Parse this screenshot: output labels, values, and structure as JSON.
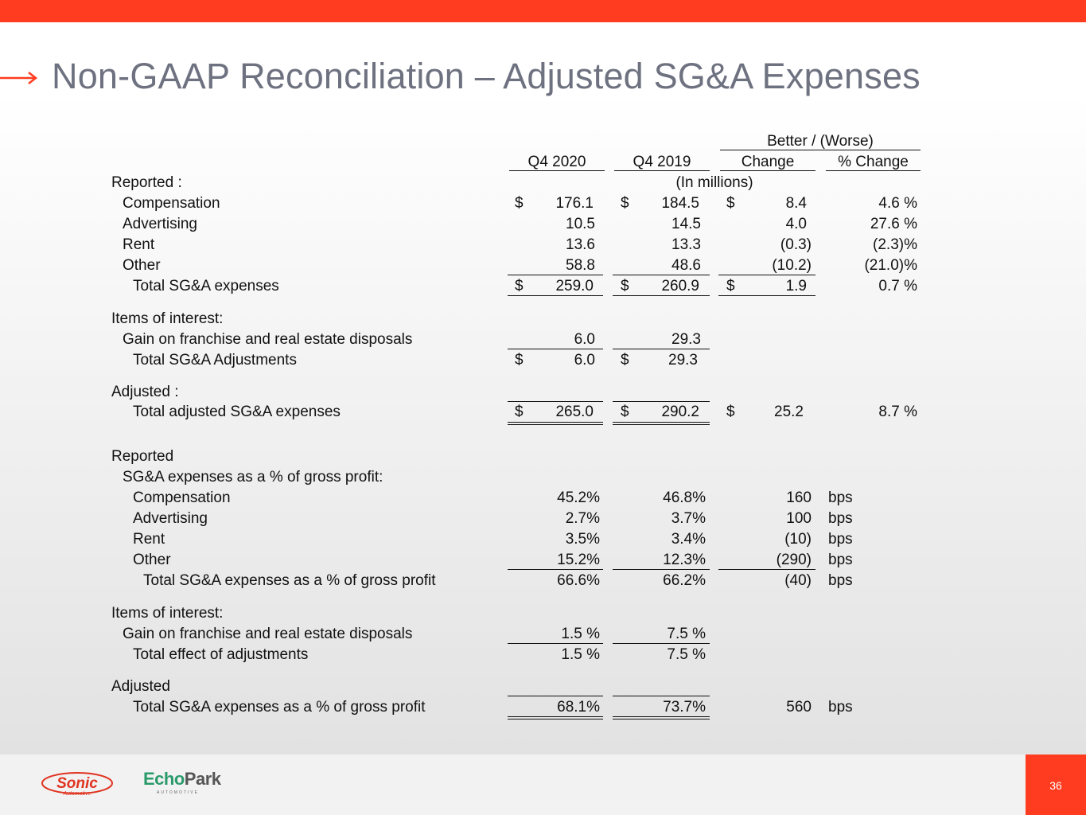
{
  "title": "Non-GAAP Reconciliation – Adjusted SG&A Expenses",
  "header": {
    "better_worse": "Better / (Worse)",
    "col_q4_2020": "Q4 2020",
    "col_q4_2019": "Q4 2019",
    "col_change": "Change",
    "col_pct_change": "% Change",
    "in_millions": "(In millions)"
  },
  "currency_symbol": "$",
  "bps_unit": "bps",
  "section1": {
    "reported_heading": "Reported :",
    "rows": [
      {
        "label": "Compensation",
        "q4_2020": "176.1",
        "q4_2019": "184.5",
        "change": "8.4",
        "pct": "4.6 %"
      },
      {
        "label": "Advertising",
        "q4_2020": "10.5",
        "q4_2019": "14.5",
        "change": "4.0",
        "pct": "27.6 %"
      },
      {
        "label": "Rent",
        "q4_2020": "13.6",
        "q4_2019": "13.3",
        "change": "(0.3)",
        "pct": "(2.3)%"
      },
      {
        "label": "Other",
        "q4_2020": "58.8",
        "q4_2019": "48.6",
        "change": "(10.2)",
        "pct": "(21.0)%"
      }
    ],
    "total": {
      "label": "Total SG&A expenses",
      "q4_2020": "259.0",
      "q4_2019": "260.9",
      "change": "1.9",
      "pct": "0.7 %"
    },
    "items_heading": "Items of interest:",
    "gain": {
      "label": "Gain on franchise and real estate disposals",
      "q4_2020": "6.0",
      "q4_2019": "29.3"
    },
    "adj_total": {
      "label": "Total SG&A Adjustments",
      "q4_2020": "6.0",
      "q4_2019": "29.3"
    },
    "adjusted_heading": "Adjusted :",
    "adjusted_total": {
      "label": "Total adjusted SG&A expenses",
      "q4_2020": "265.0",
      "q4_2019": "290.2",
      "change": "25.2",
      "pct": "8.7 %"
    }
  },
  "section2": {
    "reported_heading": "Reported",
    "subheading": "SG&A expenses as a % of gross profit:",
    "rows": [
      {
        "label": "Compensation",
        "q4_2020": "45.2%",
        "q4_2019": "46.8%",
        "change": "160"
      },
      {
        "label": "Advertising",
        "q4_2020": "2.7%",
        "q4_2019": "3.7%",
        "change": "100"
      },
      {
        "label": "Rent",
        "q4_2020": "3.5%",
        "q4_2019": "3.4%",
        "change": "(10)"
      },
      {
        "label": "Other",
        "q4_2020": "15.2%",
        "q4_2019": "12.3%",
        "change": "(290)"
      }
    ],
    "total": {
      "label": "Total SG&A expenses as a % of gross profit",
      "q4_2020": "66.6%",
      "q4_2019": "66.2%",
      "change": "(40)"
    },
    "items_heading": "Items of interest:",
    "gain": {
      "label": "Gain on franchise and real estate disposals",
      "q4_2020": "1.5 %",
      "q4_2019": "7.5 %"
    },
    "effect": {
      "label": "Total effect of adjustments",
      "q4_2020": "1.5 %",
      "q4_2019": "7.5 %"
    },
    "adjusted_heading": "Adjusted",
    "adjusted_total": {
      "label": "Total SG&A expenses as a % of gross profit",
      "q4_2020": "68.1%",
      "q4_2019": "73.7%",
      "change": "560"
    }
  },
  "footer": {
    "page_number": "36",
    "logo_sonic": "Sonic",
    "logo_sonic_sub": "Automotive",
    "logo_echo": "Echo",
    "logo_park": "Park",
    "logo_echo_sub": "AUTOMOTIVE"
  },
  "colors": {
    "accent": "#ff3c1f",
    "title": "#6e7280",
    "echo_green": "#2b9a6b"
  }
}
